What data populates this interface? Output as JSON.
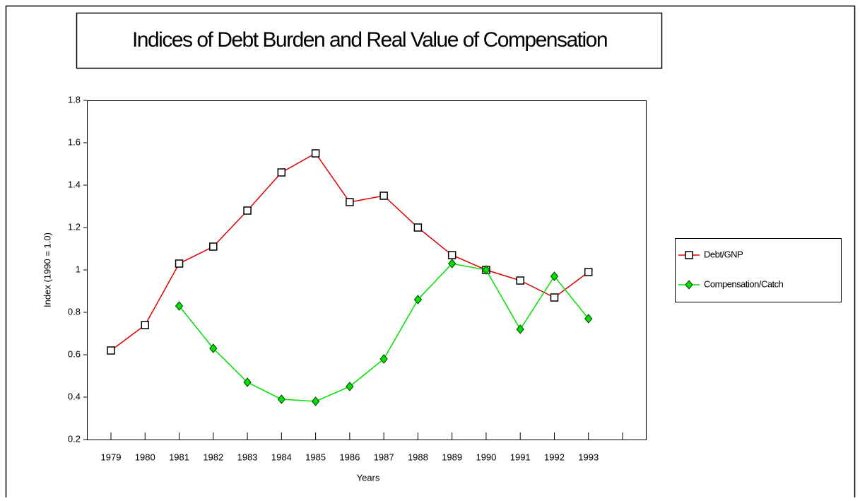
{
  "chart_data": {
    "type": "line",
    "title": "Indices of Debt Burden and Real Value of Compensation",
    "x_label": "Years",
    "y_label": "Index (1990 = 1.0)",
    "categories": [
      "1979",
      "1980",
      "1981",
      "1982",
      "1983",
      "1984",
      "1985",
      "1986",
      "1987",
      "1988",
      "1989",
      "1990",
      "1991",
      "1992",
      "1993",
      null
    ],
    "series": [
      {
        "name": "Debt/GNP",
        "color": "#e00000",
        "marker": "square",
        "values": [
          0.62,
          0.74,
          1.03,
          1.11,
          1.28,
          1.46,
          1.55,
          1.32,
          1.35,
          1.2,
          1.07,
          1.0,
          0.95,
          0.87,
          0.99,
          null
        ]
      },
      {
        "name": "Compensation/Catch",
        "color": "#00e000",
        "marker": "diamond",
        "values": [
          null,
          null,
          0.83,
          0.63,
          0.47,
          0.39,
          0.38,
          0.45,
          0.58,
          0.86,
          1.03,
          1.0,
          0.72,
          0.97,
          0.77,
          null
        ]
      }
    ],
    "ylim": [
      0.2,
      1.8
    ],
    "yticks": [
      0.2,
      0.4,
      0.6,
      0.8,
      1,
      1.2,
      1.4,
      1.6,
      1.8
    ],
    "legend": "right"
  }
}
